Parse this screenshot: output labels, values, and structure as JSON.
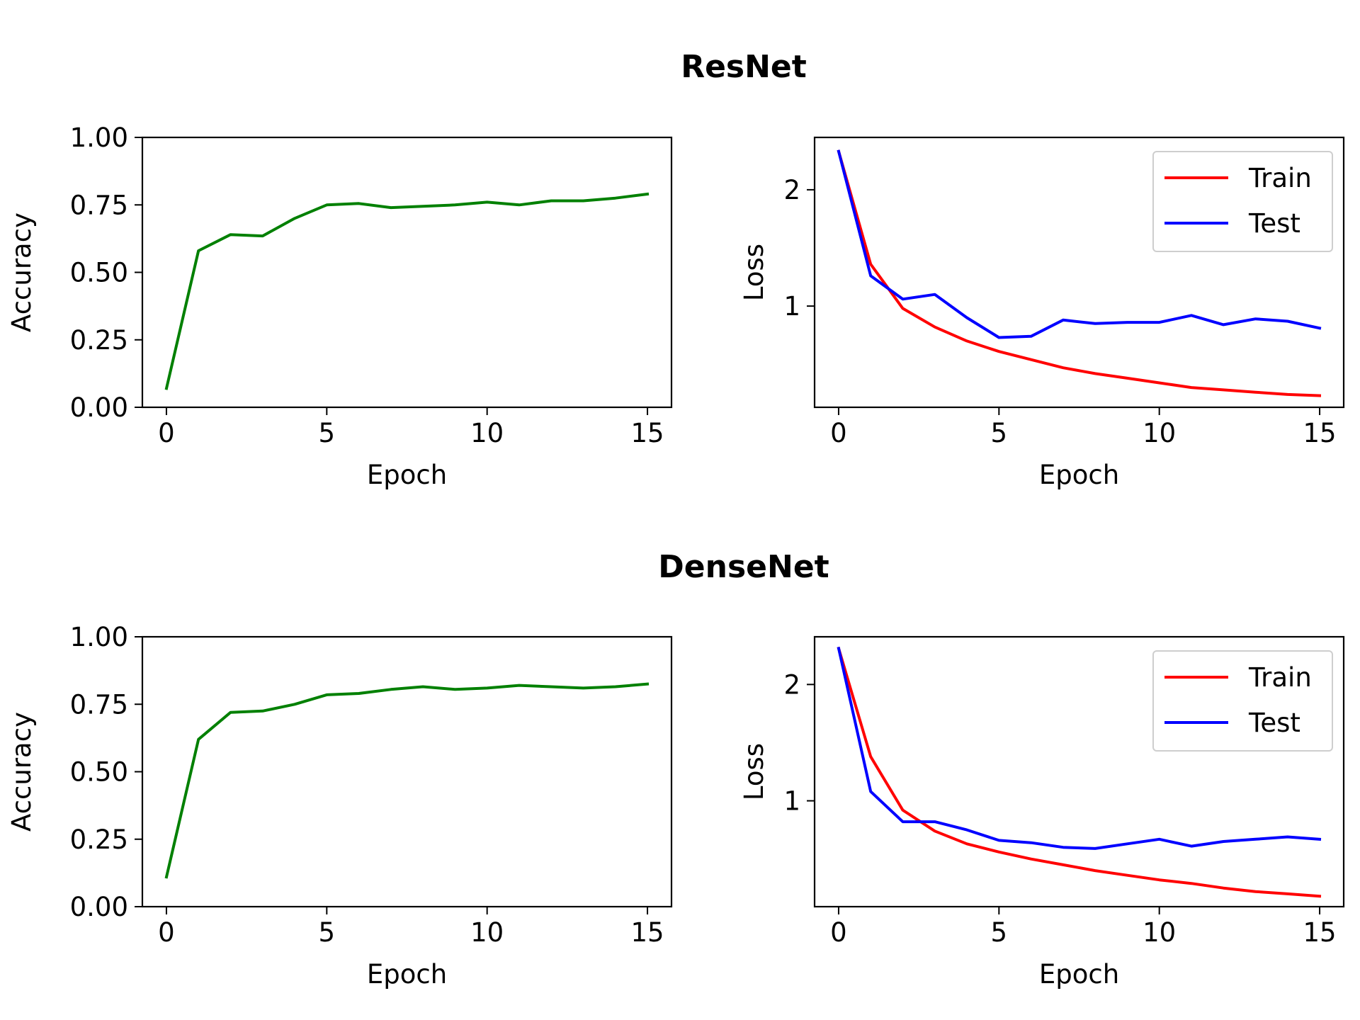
{
  "chart_data": [
    {
      "type": "line",
      "group_title": "ResNet",
      "xlabel": "Epoch",
      "ylabel": "Accuracy",
      "xlim": [
        -0.75,
        15.75
      ],
      "ylim": [
        0.0,
        1.0
      ],
      "x_ticks": [
        "0",
        "5",
        "10",
        "15"
      ],
      "y_ticks": [
        "0.00",
        "0.25",
        "0.50",
        "0.75",
        "1.00"
      ],
      "grid": false,
      "legend": null,
      "x": [
        0,
        1,
        2,
        3,
        4,
        5,
        6,
        7,
        8,
        9,
        10,
        11,
        12,
        13,
        14,
        15
      ],
      "series": [
        {
          "color": "#008000",
          "values": [
            0.07,
            0.58,
            0.64,
            0.635,
            0.7,
            0.75,
            0.755,
            0.74,
            0.745,
            0.75,
            0.76,
            0.75,
            0.765,
            0.765,
            0.775,
            0.79
          ]
        }
      ]
    },
    {
      "type": "line",
      "group_title": "ResNet",
      "xlabel": "Epoch",
      "ylabel": "Loss",
      "xlim": [
        -0.75,
        15.75
      ],
      "ylim": [
        0.13,
        2.45
      ],
      "x_ticks": [
        "0",
        "5",
        "10",
        "15"
      ],
      "y_ticks": [
        "1",
        "2"
      ],
      "grid": false,
      "legend": "upper right",
      "x": [
        0,
        1,
        2,
        3,
        4,
        5,
        6,
        7,
        8,
        9,
        10,
        11,
        12,
        13,
        14,
        15
      ],
      "series": [
        {
          "name": "Train",
          "color": "#ff0000",
          "values": [
            2.33,
            1.36,
            0.98,
            0.82,
            0.7,
            0.61,
            0.54,
            0.47,
            0.42,
            0.38,
            0.34,
            0.3,
            0.28,
            0.26,
            0.24,
            0.23
          ]
        },
        {
          "name": "Test",
          "color": "#0000ff",
          "values": [
            2.33,
            1.26,
            1.06,
            1.1,
            0.9,
            0.73,
            0.74,
            0.88,
            0.85,
            0.86,
            0.86,
            0.92,
            0.84,
            0.89,
            0.87,
            0.81
          ]
        }
      ]
    },
    {
      "type": "line",
      "group_title": "DenseNet",
      "xlabel": "Epoch",
      "ylabel": "Accuracy",
      "xlim": [
        -0.75,
        15.75
      ],
      "ylim": [
        0.0,
        1.0
      ],
      "x_ticks": [
        "0",
        "5",
        "10",
        "15"
      ],
      "y_ticks": [
        "0.00",
        "0.25",
        "0.50",
        "0.75",
        "1.00"
      ],
      "grid": false,
      "legend": null,
      "x": [
        0,
        1,
        2,
        3,
        4,
        5,
        6,
        7,
        8,
        9,
        10,
        11,
        12,
        13,
        14,
        15
      ],
      "series": [
        {
          "color": "#008000",
          "values": [
            0.11,
            0.62,
            0.72,
            0.725,
            0.75,
            0.785,
            0.79,
            0.805,
            0.815,
            0.805,
            0.81,
            0.82,
            0.815,
            0.81,
            0.815,
            0.825
          ]
        }
      ]
    },
    {
      "type": "line",
      "group_title": "DenseNet",
      "xlabel": "Epoch",
      "ylabel": "Loss",
      "xlim": [
        -0.75,
        15.75
      ],
      "ylim": [
        0.09,
        2.41
      ],
      "x_ticks": [
        "0",
        "5",
        "10",
        "15"
      ],
      "y_ticks": [
        "1",
        "2"
      ],
      "grid": false,
      "legend": "upper right",
      "x": [
        0,
        1,
        2,
        3,
        4,
        5,
        6,
        7,
        8,
        9,
        10,
        11,
        12,
        13,
        14,
        15
      ],
      "series": [
        {
          "name": "Train",
          "color": "#ff0000",
          "values": [
            2.31,
            1.38,
            0.92,
            0.74,
            0.63,
            0.56,
            0.5,
            0.45,
            0.4,
            0.36,
            0.32,
            0.29,
            0.25,
            0.22,
            0.2,
            0.18
          ]
        },
        {
          "name": "Test",
          "color": "#0000ff",
          "values": [
            2.31,
            1.08,
            0.82,
            0.82,
            0.75,
            0.66,
            0.64,
            0.6,
            0.59,
            0.63,
            0.67,
            0.61,
            0.65,
            0.67,
            0.69,
            0.67
          ]
        }
      ]
    }
  ]
}
